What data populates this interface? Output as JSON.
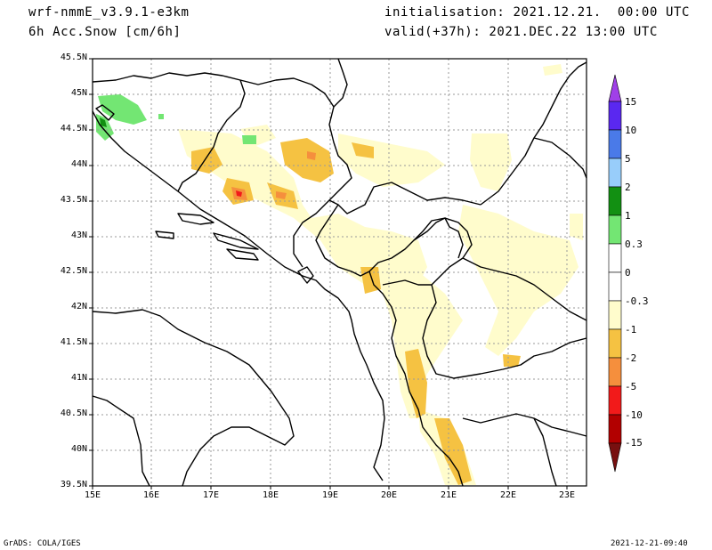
{
  "header": {
    "model": "wrf-nmmE_v3.9.1-e3km",
    "field": "6h Acc.Snow [cm/6h]",
    "init": "initialisation: 2021.12.21.  00:00 UTC",
    "valid": "valid(+37h): 2021.DEC.22 13:00 UTC"
  },
  "footer": {
    "left": "GrADS: COLA/IGES",
    "right": "2021-12-21-09:40"
  },
  "axes": {
    "lat_labels": [
      "45.5N",
      "45N",
      "44.5N",
      "44N",
      "43.5N",
      "43N",
      "42.5N",
      "42N",
      "41.5N",
      "41N",
      "40.5N",
      "40N",
      "39.5N"
    ],
    "lon_labels": [
      "15E",
      "16E",
      "17E",
      "18E",
      "19E",
      "20E",
      "21E",
      "22E",
      "23E"
    ]
  },
  "colorbar": {
    "labels": [
      "15",
      "10",
      "5",
      "2",
      "1",
      "0.3",
      "0",
      "-0.3",
      "-1",
      "-2",
      "-5",
      "-10",
      "-15"
    ],
    "colors": [
      "#5a28f0",
      "#4a7ae8",
      "#98cdfa",
      "#129012",
      "#73e673",
      "#ffffff",
      "#ffffff",
      "#fffccc",
      "#f5c242",
      "#f58f3d",
      "#f21a1a",
      "#b20000",
      "#8c0000"
    ],
    "top_arrow_color": "#a040e8",
    "bottom_arrow_color": "#781010"
  }
}
